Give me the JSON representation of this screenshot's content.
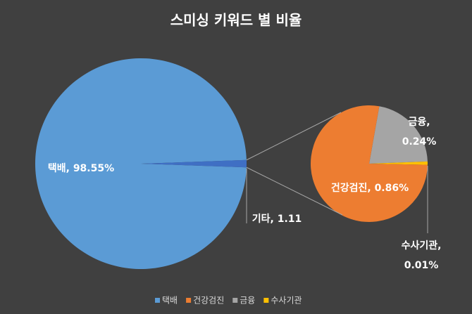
{
  "chart_data": {
    "type": "pie-of-pie",
    "title": "스미싱 키워드 별 비율",
    "categories": [
      "택배",
      "건강검진",
      "금융",
      "수사기관"
    ],
    "values": [
      98.55,
      0.86,
      0.24,
      0.01
    ],
    "value_labels": [
      "택배, 98.55%",
      "건강검진, 0.86%",
      "금융, 0.24%",
      "수사기관,\n0.01%"
    ],
    "colors": [
      "#5b9bd5",
      "#ed7d31",
      "#a5a5a5",
      "#ffc000"
    ],
    "other_value": 1.11,
    "other_label": "기타, 1.11",
    "other_color": "#3f6fc4",
    "legend": "bottom"
  }
}
